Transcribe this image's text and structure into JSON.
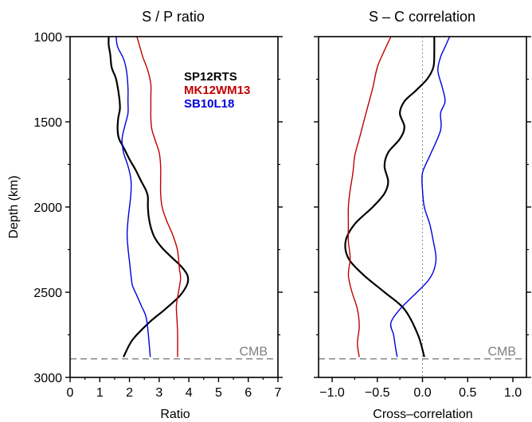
{
  "chart_data": [
    {
      "type": "line",
      "title": "S / P ratio",
      "xlabel": "Ratio",
      "ylabel": "Depth (km)",
      "xlim": [
        0,
        7
      ],
      "ylim": [
        3000,
        1000
      ],
      "xticks": [
        "0",
        "1",
        "2",
        "3",
        "4",
        "5",
        "6",
        "7"
      ],
      "yticks": [
        "1000",
        "1500",
        "2000",
        "2500",
        "3000"
      ],
      "reference_line": {
        "label": "CMB",
        "depth": 2891
      },
      "legend": {
        "placement": "top-right",
        "entries": [
          {
            "label": "SP12RTS",
            "color": "#000000"
          },
          {
            "label": "MK12WM13",
            "color": "#c00000"
          },
          {
            "label": "SB10L18",
            "color": "#0000dd"
          }
        ]
      },
      "series": [
        {
          "name": "SP12RTS",
          "color": "#000000",
          "x": [
            1.3,
            1.3,
            1.35,
            1.4,
            1.55,
            1.65,
            1.68,
            1.62,
            1.6,
            1.65,
            1.8,
            2.0,
            2.2,
            2.4,
            2.55,
            2.62,
            2.62,
            2.65,
            2.72,
            2.85,
            3.1,
            3.45,
            3.75,
            3.95,
            3.95,
            3.7,
            3.2,
            2.65,
            2.1,
            1.8
          ],
          "y": [
            1000,
            1050,
            1100,
            1180,
            1250,
            1350,
            1420,
            1480,
            1550,
            1600,
            1650,
            1720,
            1780,
            1850,
            1900,
            1940,
            2000,
            2060,
            2120,
            2180,
            2240,
            2300,
            2350,
            2400,
            2450,
            2520,
            2600,
            2680,
            2780,
            2880
          ]
        },
        {
          "name": "MK12WM13",
          "color": "#c00000",
          "x": [
            2.25,
            2.35,
            2.45,
            2.62,
            2.72,
            2.72,
            2.72,
            2.72,
            2.75,
            2.85,
            3.0,
            3.05,
            3.05,
            3.05,
            3.1,
            3.25,
            3.45,
            3.6,
            3.65,
            3.68,
            3.72,
            3.65,
            3.58,
            3.6,
            3.62,
            3.62
          ],
          "y": [
            1000,
            1060,
            1120,
            1200,
            1280,
            1350,
            1420,
            1480,
            1540,
            1600,
            1680,
            1760,
            1840,
            1920,
            2000,
            2080,
            2160,
            2240,
            2300,
            2360,
            2420,
            2500,
            2580,
            2660,
            2740,
            2880
          ]
        },
        {
          "name": "SB10L18",
          "color": "#0000dd",
          "x": [
            1.55,
            1.6,
            1.8,
            1.9,
            1.95,
            1.95,
            1.95,
            1.85,
            1.75,
            1.8,
            1.95,
            2.05,
            2.05,
            2.0,
            1.95,
            1.92,
            1.95,
            2.0,
            2.05,
            2.1,
            2.25,
            2.4,
            2.55,
            2.62,
            2.7
          ],
          "y": [
            1000,
            1060,
            1130,
            1200,
            1300,
            1380,
            1450,
            1520,
            1600,
            1680,
            1760,
            1840,
            1920,
            2000,
            2080,
            2160,
            2240,
            2320,
            2400,
            2460,
            2520,
            2580,
            2640,
            2720,
            2880
          ]
        }
      ]
    },
    {
      "type": "line",
      "title": "S – C correlation",
      "xlabel": "Cross–correlation",
      "xlim": [
        -1.15,
        1.15
      ],
      "ylim": [
        3000,
        1000
      ],
      "xticks": [
        "−1.0",
        "−0.5",
        "0.0",
        "0.5",
        "1.0"
      ],
      "zero_line": true,
      "reference_line": {
        "label": "CMB",
        "depth": 2891
      },
      "series": [
        {
          "name": "SP12RTS",
          "color": "#000000",
          "x": [
            0.13,
            0.13,
            0.12,
            0.05,
            -0.08,
            -0.2,
            -0.25,
            -0.2,
            -0.25,
            -0.38,
            -0.42,
            -0.38,
            -0.42,
            -0.55,
            -0.75,
            -0.85,
            -0.82,
            -0.65,
            -0.42,
            -0.2,
            -0.05,
            0.02
          ],
          "y": [
            1000,
            1100,
            1180,
            1250,
            1320,
            1380,
            1450,
            1530,
            1600,
            1680,
            1760,
            1850,
            1920,
            2000,
            2100,
            2200,
            2300,
            2400,
            2500,
            2600,
            2750,
            2880
          ]
        },
        {
          "name": "MK12WM13",
          "color": "#c00000",
          "x": [
            -0.35,
            -0.42,
            -0.5,
            -0.55,
            -0.6,
            -0.65,
            -0.7,
            -0.75,
            -0.77,
            -0.8,
            -0.82,
            -0.82,
            -0.82,
            -0.8,
            -0.82,
            -0.78,
            -0.72,
            -0.7,
            -0.72,
            -0.7
          ],
          "y": [
            1000,
            1080,
            1180,
            1300,
            1400,
            1500,
            1600,
            1700,
            1800,
            1900,
            2000,
            2100,
            2200,
            2300,
            2400,
            2500,
            2600,
            2700,
            2800,
            2880
          ]
        },
        {
          "name": "SB10L18",
          "color": "#0000dd",
          "x": [
            0.3,
            0.25,
            0.2,
            0.17,
            0.22,
            0.25,
            0.2,
            0.2,
            0.08,
            0.0,
            0.0,
            0.02,
            0.08,
            0.12,
            0.15,
            0.12,
            0.05,
            -0.1,
            -0.25,
            -0.35,
            -0.32,
            -0.3,
            -0.28
          ],
          "y": [
            1000,
            1060,
            1120,
            1200,
            1300,
            1380,
            1450,
            1550,
            1700,
            1800,
            1900,
            2000,
            2100,
            2200,
            2300,
            2380,
            2440,
            2520,
            2600,
            2680,
            2750,
            2820,
            2880
          ]
        }
      ]
    }
  ]
}
